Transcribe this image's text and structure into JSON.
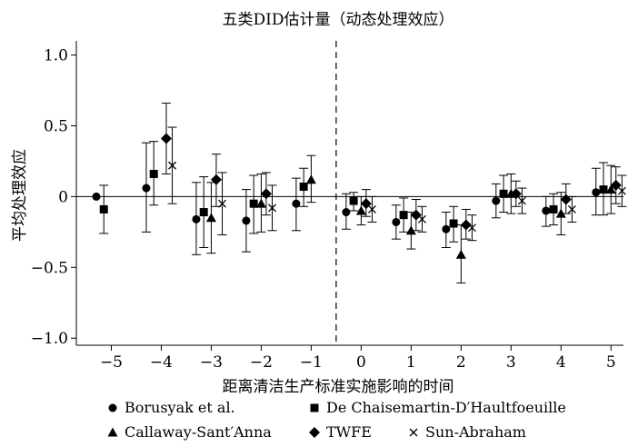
{
  "chart_data": {
    "type": "scatter",
    "subtype": "event-study point estimates with 95% confidence intervals",
    "title": "五类DID估计量（动态处理效应）",
    "xlabel": "距离清洁生产标准实施影响的时间",
    "ylabel": "平均处理效应",
    "xlim": [
      -5.7,
      5.25
    ],
    "ylim": [
      -1.05,
      1.1
    ],
    "x_ticks": [
      -5,
      -4,
      -3,
      -2,
      -1,
      0,
      1,
      2,
      3,
      4,
      5
    ],
    "x_tick_labels": [
      "−5",
      "−4",
      "−3",
      "−2",
      "−1",
      "0",
      "1",
      "2",
      "3",
      "4",
      "5"
    ],
    "y_ticks": [
      1.0,
      0.5,
      0,
      -0.5,
      -1.0
    ],
    "y_tick_labels": [
      "1.0",
      "0.5",
      "0",
      "−0.5",
      "−1.0"
    ],
    "reference_line_y": 0,
    "treatment_line_x": -0.5,
    "grid": false,
    "legend_position": "bottom",
    "series": [
      {
        "name": "Borusyak et al.",
        "marker": "circle",
        "offset": -0.3,
        "points": [
          {
            "x": -5,
            "y": 0.0,
            "lo": null,
            "hi": null
          },
          {
            "x": -4,
            "y": 0.06,
            "lo": -0.25,
            "hi": 0.38
          },
          {
            "x": -3,
            "y": -0.16,
            "lo": -0.41,
            "hi": 0.1
          },
          {
            "x": -2,
            "y": -0.17,
            "lo": -0.39,
            "hi": 0.05
          },
          {
            "x": -1,
            "y": -0.05,
            "lo": -0.24,
            "hi": 0.13
          },
          {
            "x": 0,
            "y": -0.11,
            "lo": -0.23,
            "hi": 0.02
          },
          {
            "x": 1,
            "y": -0.18,
            "lo": -0.3,
            "hi": -0.06
          },
          {
            "x": 2,
            "y": -0.23,
            "lo": -0.36,
            "hi": -0.11
          },
          {
            "x": 3,
            "y": -0.03,
            "lo": -0.15,
            "hi": 0.09
          },
          {
            "x": 4,
            "y": -0.1,
            "lo": -0.21,
            "hi": 0.0
          },
          {
            "x": 5,
            "y": 0.03,
            "lo": -0.13,
            "hi": 0.2
          }
        ]
      },
      {
        "name": "De Chaisemartin-D′Haultfoeuille",
        "marker": "square",
        "offset": -0.15,
        "points": [
          {
            "x": -5,
            "y": -0.09,
            "lo": -0.26,
            "hi": 0.08
          },
          {
            "x": -4,
            "y": 0.16,
            "lo": -0.06,
            "hi": 0.39
          },
          {
            "x": -3,
            "y": -0.11,
            "lo": -0.36,
            "hi": 0.14
          },
          {
            "x": -2,
            "y": -0.05,
            "lo": -0.26,
            "hi": 0.15
          },
          {
            "x": -1,
            "y": 0.07,
            "lo": -0.07,
            "hi": 0.2
          },
          {
            "x": 0,
            "y": -0.03,
            "lo": -0.1,
            "hi": 0.03
          },
          {
            "x": 1,
            "y": -0.13,
            "lo": -0.25,
            "hi": -0.01
          },
          {
            "x": 2,
            "y": -0.19,
            "lo": -0.32,
            "hi": -0.07
          },
          {
            "x": 3,
            "y": 0.02,
            "lo": -0.11,
            "hi": 0.15
          },
          {
            "x": 4,
            "y": -0.09,
            "lo": -0.2,
            "hi": 0.02
          },
          {
            "x": 5,
            "y": 0.05,
            "lo": -0.13,
            "hi": 0.24
          }
        ]
      },
      {
        "name": "Callaway-Sant′Anna",
        "marker": "triangle",
        "offset": 0.0,
        "points": [
          {
            "x": -3,
            "y": -0.15,
            "lo": -0.4,
            "hi": 0.1
          },
          {
            "x": -2,
            "y": -0.05,
            "lo": -0.25,
            "hi": 0.16
          },
          {
            "x": -1,
            "y": 0.12,
            "lo": -0.04,
            "hi": 0.29
          },
          {
            "x": 0,
            "y": -0.1,
            "lo": -0.2,
            "hi": 0.0
          },
          {
            "x": 1,
            "y": -0.24,
            "lo": -0.37,
            "hi": -0.11
          },
          {
            "x": 2,
            "y": -0.41,
            "lo": -0.61,
            "hi": -0.2
          },
          {
            "x": 3,
            "y": 0.02,
            "lo": -0.12,
            "hi": 0.16
          },
          {
            "x": 4,
            "y": -0.12,
            "lo": -0.27,
            "hi": 0.03
          },
          {
            "x": 5,
            "y": 0.05,
            "lo": -0.12,
            "hi": 0.22
          }
        ]
      },
      {
        "name": "TWFE",
        "marker": "diamond",
        "offset": 0.1,
        "points": [
          {
            "x": -4,
            "y": 0.41,
            "lo": 0.16,
            "hi": 0.66
          },
          {
            "x": -3,
            "y": 0.12,
            "lo": -0.07,
            "hi": 0.3
          },
          {
            "x": -2,
            "y": 0.02,
            "lo": -0.13,
            "hi": 0.17
          },
          {
            "x": 0,
            "y": -0.05,
            "lo": -0.14,
            "hi": 0.05
          },
          {
            "x": 1,
            "y": -0.13,
            "lo": -0.24,
            "hi": -0.02
          },
          {
            "x": 2,
            "y": -0.2,
            "lo": -0.3,
            "hi": -0.09
          },
          {
            "x": 3,
            "y": 0.02,
            "lo": -0.07,
            "hi": 0.11
          },
          {
            "x": 4,
            "y": -0.02,
            "lo": -0.12,
            "hi": 0.09
          },
          {
            "x": 5,
            "y": 0.08,
            "lo": -0.05,
            "hi": 0.21
          }
        ]
      },
      {
        "name": "Sun-Abraham",
        "marker": "cross",
        "offset": 0.22,
        "points": [
          {
            "x": -4,
            "y": 0.22,
            "lo": -0.05,
            "hi": 0.49
          },
          {
            "x": -3,
            "y": -0.05,
            "lo": -0.27,
            "hi": 0.17
          },
          {
            "x": -2,
            "y": -0.08,
            "lo": -0.24,
            "hi": 0.08
          },
          {
            "x": 0,
            "y": -0.09,
            "lo": -0.18,
            "hi": 0.0
          },
          {
            "x": 1,
            "y": -0.16,
            "lo": -0.25,
            "hi": -0.07
          },
          {
            "x": 2,
            "y": -0.22,
            "lo": -0.31,
            "hi": -0.13
          },
          {
            "x": 3,
            "y": -0.03,
            "lo": -0.12,
            "hi": 0.06
          },
          {
            "x": 4,
            "y": -0.09,
            "lo": -0.18,
            "hi": 0.0
          },
          {
            "x": 5,
            "y": 0.04,
            "lo": -0.07,
            "hi": 0.15
          }
        ]
      }
    ]
  }
}
